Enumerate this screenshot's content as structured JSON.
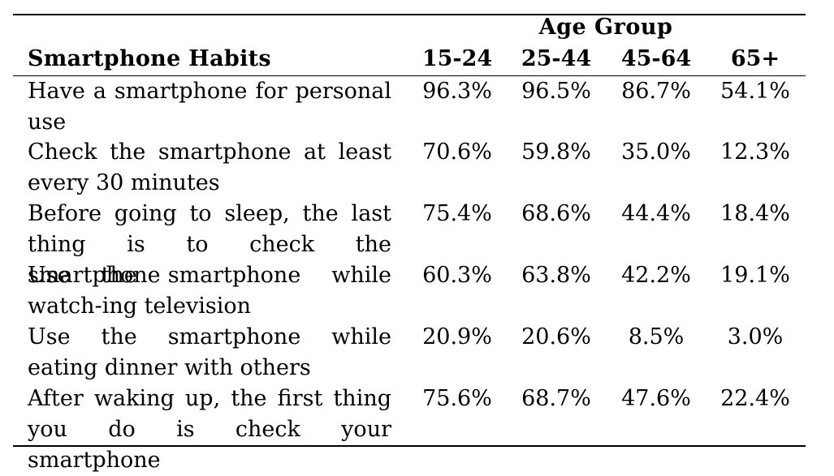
{
  "table": {
    "group_header": "Age Group",
    "habits_header": "Smartphone Habits",
    "columns": [
      "15-24",
      "25-44",
      "45-64",
      "65+"
    ],
    "rows": [
      {
        "habit": "Have a smartphone for personal use",
        "values": [
          "96.3%",
          "96.5%",
          "86.7%",
          "54.1%"
        ]
      },
      {
        "habit": "Check the smartphone at least every 30 minutes",
        "values": [
          "70.6%",
          "59.8%",
          "35.0%",
          "12.3%"
        ]
      },
      {
        "habit": "Before going to sleep, the last thing is to check the smartphone",
        "values": [
          "75.4%",
          "68.6%",
          "44.4%",
          "18.4%"
        ]
      },
      {
        "habit": "Use the smartphone while watch-ing television",
        "values": [
          "60.3%",
          "63.8%",
          "42.2%",
          "19.1%"
        ]
      },
      {
        "habit": "Use the smartphone while eating dinner with others",
        "values": [
          "20.9%",
          "20.6%",
          "8.5%",
          "3.0%"
        ]
      },
      {
        "habit": "After waking up, the first thing you do is check your smartphone",
        "values": [
          "75.6%",
          "68.7%",
          "47.6%",
          "22.4%"
        ]
      }
    ]
  }
}
